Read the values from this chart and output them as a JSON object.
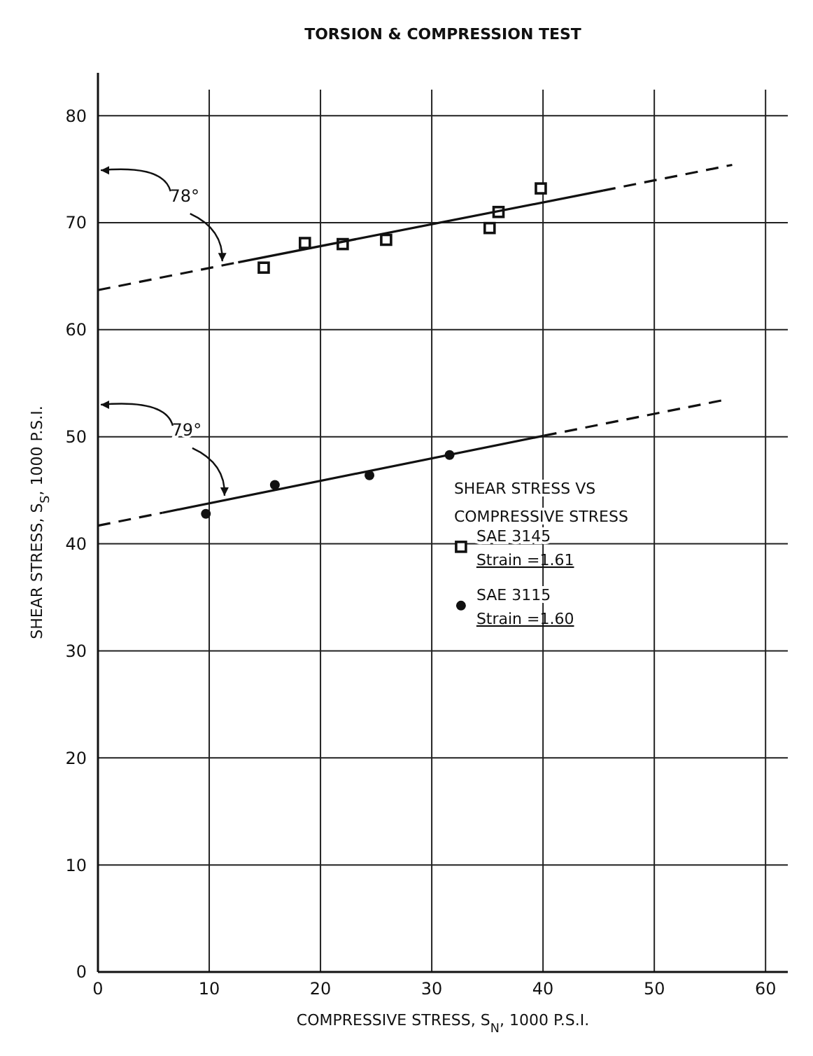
{
  "chart_data": {
    "type": "scatter",
    "title": "TORSION & COMPRESSION TEST",
    "xlabel": "COMPRESSIVE STRESS, S$_{N}$, 1000 P.S.I.",
    "ylabel": "SHEAR STRESS, S$_{S}$, 1000 P.S.I.",
    "legend_title": "SHEAR STRESS VS\nCOMPRESSIVE STRESS",
    "xlim": [
      0,
      62
    ],
    "ylim": [
      0,
      84
    ],
    "xticks": [
      0,
      10,
      20,
      30,
      40,
      50,
      60
    ],
    "yticks": [
      0,
      10,
      20,
      30,
      40,
      50,
      60,
      70,
      80
    ],
    "grid": true,
    "legend": "right",
    "annotations": [
      {
        "text": "78°",
        "x": 11.3,
        "y": 66.0
      },
      {
        "text": "79°",
        "x": 11.5,
        "y": 44.1
      }
    ],
    "series": [
      {
        "name": "SAE 3145\nStrain =1.61",
        "marker": "square",
        "color": "#111111",
        "x": [
          14.9,
          18.6,
          22.0,
          25.9,
          35.2,
          36.0,
          39.8
        ],
        "values": [
          65.8,
          68.1,
          68.0,
          68.4,
          69.5,
          71.0,
          73.2
        ]
      },
      {
        "name": "SAE 3115\nStrain =1.60",
        "marker": "circle",
        "color": "#111111",
        "x": [
          9.7,
          15.9,
          24.4,
          31.6
        ],
        "values": [
          42.8,
          45.5,
          46.4,
          48.3
        ]
      },
      {
        "type": "line",
        "line_style": "solid",
        "color": "#111111",
        "x": [
          12.6,
          45.4
        ],
        "values": [
          66.3,
          73.0
        ]
      },
      {
        "type": "line",
        "line_style": "dashed",
        "color": "#111111",
        "x": [
          0,
          12.6,
          30,
          45.4,
          57
        ],
        "values": [
          63.7,
          66.3,
          null,
          73.0,
          75.4
        ]
      },
      {
        "type": "line",
        "line_style": "solid",
        "color": "#111111",
        "x": [
          5.8,
          40.1
        ],
        "values": [
          42.9,
          50.1
        ]
      },
      {
        "type": "line",
        "line_style": "dashed",
        "color": "#111111",
        "x": [
          0,
          5.8,
          20,
          40.1,
          56.1
        ],
        "values": [
          41.7,
          42.9,
          null,
          50.1,
          53.4
        ]
      }
    ]
  }
}
